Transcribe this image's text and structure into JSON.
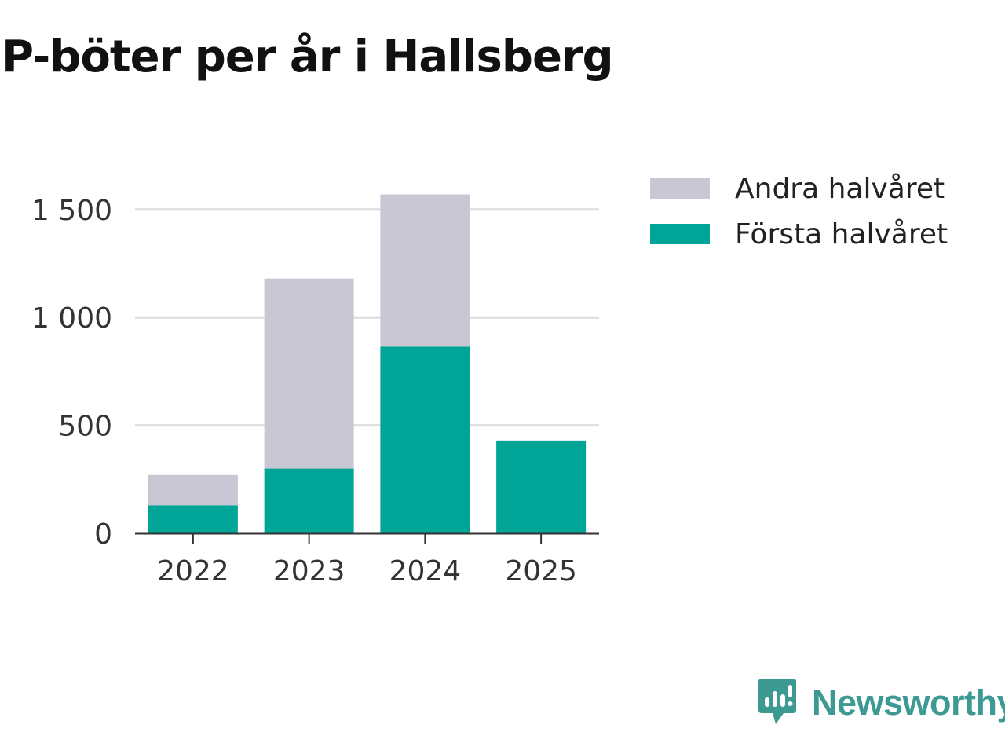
{
  "title": "P-böter per år i Hallsberg",
  "chart_data": {
    "type": "bar",
    "stacked": true,
    "title": "P-böter per år i Hallsberg",
    "xlabel": "",
    "ylabel": "",
    "categories": [
      "2022",
      "2023",
      "2024",
      "2025"
    ],
    "series": [
      {
        "name": "Första halvåret",
        "color": "#00a598",
        "values": [
          130,
          300,
          865,
          430
        ]
      },
      {
        "name": "Andra halvåret",
        "color": "#c8c7d3",
        "values": [
          140,
          880,
          705,
          0
        ]
      }
    ],
    "ylim": [
      0,
      1600
    ],
    "yticks": [
      0,
      500,
      1000,
      1500
    ],
    "ytick_labels": [
      "0",
      "500",
      "1 000",
      "1 500"
    ],
    "grid": true,
    "legend_position": "right"
  },
  "legend": [
    {
      "label": "Andra halvåret",
      "color": "#c8c7d3"
    },
    {
      "label": "Första halvåret",
      "color": "#00a598"
    }
  ],
  "brand": {
    "name": "Newsworthy",
    "icon": "newsworthy-logo-icon",
    "color": "#3d9a92"
  }
}
